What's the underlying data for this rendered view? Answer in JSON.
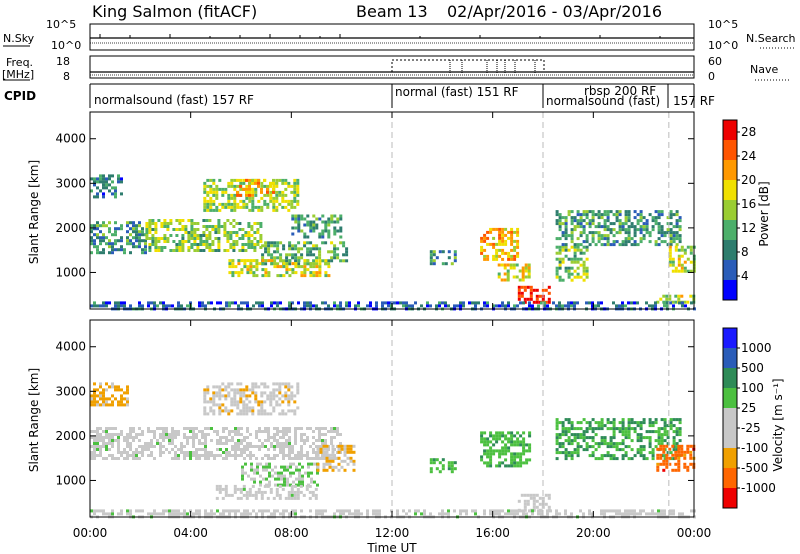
{
  "header": {
    "radar": "King Salmon (fitACF)",
    "beam": "Beam 13",
    "dates": "02/Apr/2016 - 03/Apr/2016"
  },
  "strip_labels": {
    "nsky": "N.Sky",
    "freq": "Freq.",
    "freq_unit": "[MHz]",
    "cpid": "CPID",
    "nsearch": "N.Search",
    "nave": "Nave",
    "nsky_ticks": [
      "10^5",
      "10^0"
    ],
    "freq_ticks": [
      "18",
      "8"
    ],
    "nave_ticks": [
      "60",
      "0"
    ]
  },
  "cpid_segments": [
    {
      "label": "normalsound (fast) 157 RF",
      "start_hour": 0.0,
      "end_hour": 12.0
    },
    {
      "label": "normal (fast) 151 RF",
      "start_hour": 12.0,
      "end_hour": 18.0
    },
    {
      "label": "rbsp 200 RF",
      "start_hour": 18.0,
      "end_hour": 23.0
    },
    {
      "label": "normalsound (fast)",
      "start_hour": 18.0,
      "end_hour": 23.0
    },
    {
      "label": "157 RF",
      "start_hour": 23.0,
      "end_hour": 24.0
    }
  ],
  "colors": {
    "power_scale": [
      "#0000ff",
      "#2a5cb8",
      "#2e7d6e",
      "#4caf6a",
      "#9acd32",
      "#f0e000",
      "#ff9900",
      "#ff5500",
      "#ee0000"
    ],
    "velocity_scale": [
      "#1a1aff",
      "#2a5cb8",
      "#2e8b57",
      "#4cc040",
      "#c8c8c8",
      "#c8c8c8",
      "#f0a000",
      "#ff6600",
      "#ee0000"
    ]
  },
  "chart_data": [
    {
      "type": "heatmap",
      "panel": "power",
      "title": "",
      "xlabel": "Time UT",
      "ylabel": "Slant Range [km]",
      "x_ticks": [
        "00:00",
        "04:00",
        "08:00",
        "12:00",
        "16:00",
        "20:00",
        "00:00"
      ],
      "y_ticks": [
        "1000",
        "2000",
        "3000",
        "4000"
      ],
      "xlim_hours": [
        0,
        24
      ],
      "ylim_km": [
        180,
        4600
      ],
      "colorbar": {
        "label": "Power [dB]",
        "ticks": [
          "4",
          "8",
          "12",
          "16",
          "20",
          "24",
          "28"
        ],
        "range": [
          0,
          30
        ]
      },
      "echo_regions": [
        {
          "t0": 0.0,
          "t1": 1.2,
          "r0": 2700,
          "r1": 3200,
          "value": 8
        },
        {
          "t0": 0.0,
          "t1": 2.2,
          "r0": 1450,
          "r1": 2150,
          "value": 10
        },
        {
          "t0": 2.2,
          "t1": 6.8,
          "r0": 1500,
          "r1": 2200,
          "value": 14
        },
        {
          "t0": 6.8,
          "t1": 10.2,
          "r0": 1200,
          "r1": 1700,
          "value": 12
        },
        {
          "t0": 4.5,
          "t1": 8.2,
          "r0": 2400,
          "r1": 3100,
          "value": 15
        },
        {
          "t0": 5.8,
          "t1": 7.3,
          "r0": 2700,
          "r1": 3100,
          "value": 20
        },
        {
          "t0": 5.5,
          "t1": 9.5,
          "r0": 900,
          "r1": 1300,
          "value": 16
        },
        {
          "t0": 8.0,
          "t1": 10.0,
          "r0": 1800,
          "r1": 2300,
          "value": 10
        },
        {
          "t0": 13.5,
          "t1": 14.5,
          "r0": 1200,
          "r1": 1500,
          "value": 10
        },
        {
          "t0": 15.5,
          "t1": 17.0,
          "r0": 1300,
          "r1": 2000,
          "value": 20
        },
        {
          "t0": 16.2,
          "t1": 17.5,
          "r0": 800,
          "r1": 1200,
          "value": 18
        },
        {
          "t0": 17.0,
          "t1": 18.2,
          "r0": 350,
          "r1": 700,
          "value": 28
        },
        {
          "t0": 18.5,
          "t1": 19.8,
          "r0": 800,
          "r1": 1600,
          "value": 14
        },
        {
          "t0": 18.5,
          "t1": 23.5,
          "r0": 1600,
          "r1": 2400,
          "value": 10
        },
        {
          "t0": 23.0,
          "t1": 24.0,
          "r0": 1000,
          "r1": 1600,
          "value": 16
        },
        {
          "t0": 22.5,
          "t1": 24.0,
          "r0": 350,
          "r1": 500,
          "value": 16
        },
        {
          "t0": 0.0,
          "t1": 24.0,
          "r0": 200,
          "r1": 350,
          "value": 6
        }
      ]
    },
    {
      "type": "heatmap",
      "panel": "velocity",
      "title": "",
      "xlabel": "Time UT",
      "ylabel": "Slant Range [km]",
      "x_ticks": [
        "00:00",
        "04:00",
        "08:00",
        "12:00",
        "16:00",
        "20:00",
        "00:00"
      ],
      "y_ticks": [
        "1000",
        "2000",
        "3000",
        "4000"
      ],
      "xlim_hours": [
        0,
        24
      ],
      "ylim_km": [
        180,
        4600
      ],
      "colorbar": {
        "label": "Velocity [m s⁻¹]",
        "ticks": [
          "1000",
          "500",
          "100",
          "25",
          "-25",
          "-100",
          "-500",
          "-1000"
        ],
        "range": [
          -1200,
          1200
        ]
      },
      "echo_regions": [
        {
          "t0": 0.0,
          "t1": 1.5,
          "r0": 2700,
          "r1": 3200,
          "value": -500
        },
        {
          "t0": 0.0,
          "t1": 10.0,
          "r0": 1500,
          "r1": 2200,
          "value": 0
        },
        {
          "t0": 4.5,
          "t1": 8.2,
          "r0": 2500,
          "r1": 3200,
          "value": -300
        },
        {
          "t0": 6.0,
          "t1": 9.0,
          "r0": 900,
          "r1": 1400,
          "value": 100
        },
        {
          "t0": 5.0,
          "t1": 9.0,
          "r0": 600,
          "r1": 900,
          "value": 0
        },
        {
          "t0": 9.0,
          "t1": 10.5,
          "r0": 1200,
          "r1": 1800,
          "value": -400
        },
        {
          "t0": 13.5,
          "t1": 14.5,
          "r0": 1200,
          "r1": 1500,
          "value": 300
        },
        {
          "t0": 15.5,
          "t1": 17.5,
          "r0": 1300,
          "r1": 2100,
          "value": 300
        },
        {
          "t0": 17.0,
          "t1": 18.2,
          "r0": 350,
          "r1": 700,
          "value": -200
        },
        {
          "t0": 18.5,
          "t1": 23.5,
          "r0": 1500,
          "r1": 2400,
          "value": 400
        },
        {
          "t0": 22.5,
          "t1": 24.0,
          "r0": 1200,
          "r1": 1800,
          "value": -800
        },
        {
          "t0": 0.0,
          "t1": 24.0,
          "r0": 200,
          "r1": 350,
          "value": 0
        }
      ]
    }
  ]
}
